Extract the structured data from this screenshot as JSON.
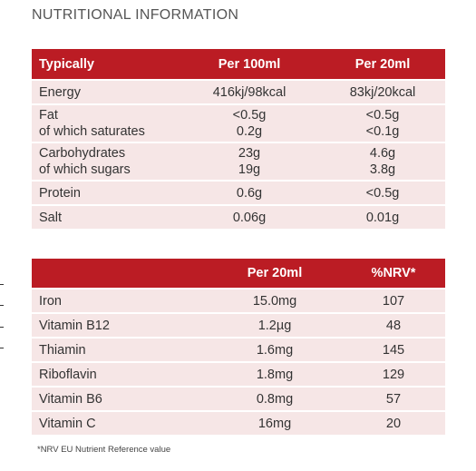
{
  "heading": "NUTRITIONAL INFORMATION",
  "nutrition": {
    "headers": [
      "Typically",
      "Per 100ml",
      "Per 20ml"
    ],
    "rows": [
      {
        "label": "Energy",
        "per100": "416kj/98kcal",
        "per20": "83kj/20kcal"
      },
      {
        "label": "Fat",
        "label2": "of which saturates",
        "per100": "<0.5g",
        "per100_2": "0.2g",
        "per20": "<0.5g",
        "per20_2": "<0.1g"
      },
      {
        "label": "Carbohydrates",
        "label2": "of which sugars",
        "per100": "23g",
        "per100_2": "19g",
        "per20": "4.6g",
        "per20_2": "3.8g"
      },
      {
        "label": "Protein",
        "per100": "0.6g",
        "per20": "<0.5g"
      },
      {
        "label": "Salt",
        "per100": "0.06g",
        "per20": "0.01g"
      }
    ]
  },
  "vitamins": {
    "headers": [
      "",
      "Per 20ml",
      "%NRV*"
    ],
    "rows": [
      {
        "label": "Iron",
        "per20": "15.0mg",
        "nrv": "107"
      },
      {
        "label": "Vitamin B12",
        "per20": "1.2µg",
        "nrv": "48"
      },
      {
        "label": "Thiamin",
        "per20": "1.6mg",
        "nrv": "145"
      },
      {
        "label": "Riboflavin",
        "per20": "1.8mg",
        "nrv": "129"
      },
      {
        "label": "Vitamin B6",
        "per20": "0.8mg",
        "nrv": "57"
      },
      {
        "label": "Vitamin C",
        "per20": "16mg",
        "nrv": "20"
      }
    ]
  },
  "footnote": "*NRV EU Nutrient Reference value",
  "colors": {
    "header_bg": "#bb1c24",
    "row_bg": "#f6e6e6",
    "header_text": "#ffffff"
  }
}
